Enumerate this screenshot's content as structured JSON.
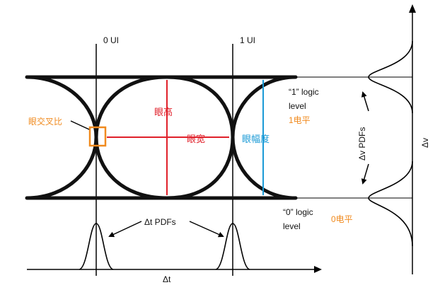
{
  "labels": {
    "ui0": "0 UI",
    "ui1": "1 UI",
    "logic1_line1": "“1” logic",
    "logic1_line2": "level",
    "logic1_cn": "1电平",
    "logic0_line1": "“0” logic",
    "logic0_line2": "level",
    "logic0_cn": "0电平",
    "eye_crossing": "眼交叉比",
    "eye_height": "眼高",
    "eye_width": "眼宽",
    "eye_amplitude": "眼幅度",
    "dt_pdfs": "Δt PDFs",
    "dv_pdfs": "Δv PDFs",
    "dt_axis": "Δt",
    "dv_axis": "Δv"
  },
  "colors": {
    "trace": "#111111",
    "red": "#e0202a",
    "blue": "#1a9ad6",
    "orange": "#f08a1e",
    "axis": "#000000"
  }
}
